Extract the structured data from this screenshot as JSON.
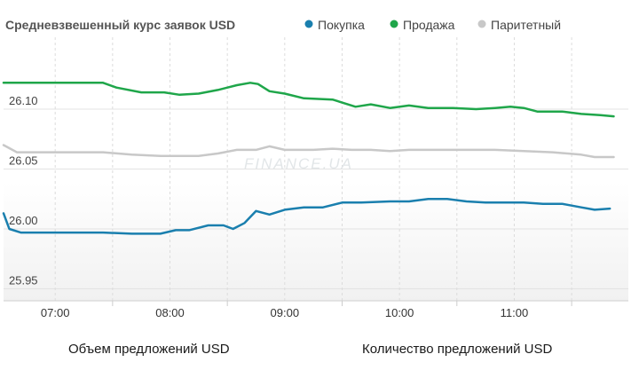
{
  "chart_data": {
    "type": "line",
    "title": "Средневзвешенный курс заявок USD",
    "watermark": "FINANCE.UA",
    "x_ticks": [
      "07:00",
      "08:00",
      "09:00",
      "10:00",
      "11:00"
    ],
    "x_range": [
      "06:33",
      "11:55"
    ],
    "y_ticks": [
      "26.10",
      "26.05",
      "26.00",
      "25.95"
    ],
    "ylim": [
      25.94,
      26.16
    ],
    "grid": true,
    "legend_position": "top",
    "series": [
      {
        "name": "Покупка",
        "color": "#1a7fae",
        "points": [
          [
            "06:33",
            26.013
          ],
          [
            "06:36",
            26.0
          ],
          [
            "06:42",
            25.997
          ],
          [
            "06:50",
            25.997
          ],
          [
            "07:05",
            25.997
          ],
          [
            "07:25",
            25.997
          ],
          [
            "07:40",
            25.996
          ],
          [
            "07:55",
            25.996
          ],
          [
            "08:03",
            25.999
          ],
          [
            "08:10",
            25.999
          ],
          [
            "08:20",
            26.003
          ],
          [
            "08:28",
            26.003
          ],
          [
            "08:33",
            26.0
          ],
          [
            "08:39",
            26.005
          ],
          [
            "08:45",
            26.015
          ],
          [
            "08:52",
            26.012
          ],
          [
            "09:00",
            26.016
          ],
          [
            "09:10",
            26.018
          ],
          [
            "09:20",
            26.018
          ],
          [
            "09:30",
            26.022
          ],
          [
            "09:40",
            26.022
          ],
          [
            "09:55",
            26.023
          ],
          [
            "10:05",
            26.023
          ],
          [
            "10:15",
            26.025
          ],
          [
            "10:25",
            26.025
          ],
          [
            "10:35",
            26.023
          ],
          [
            "10:45",
            26.022
          ],
          [
            "10:55",
            26.022
          ],
          [
            "11:05",
            26.022
          ],
          [
            "11:15",
            26.021
          ],
          [
            "11:25",
            26.021
          ],
          [
            "11:35",
            26.018
          ],
          [
            "11:42",
            26.016
          ],
          [
            "11:50",
            26.017
          ]
        ]
      },
      {
        "name": "Продажа",
        "color": "#1fa64a",
        "points": [
          [
            "06:33",
            26.122
          ],
          [
            "06:50",
            26.122
          ],
          [
            "07:10",
            26.122
          ],
          [
            "07:25",
            26.122
          ],
          [
            "07:32",
            26.118
          ],
          [
            "07:45",
            26.114
          ],
          [
            "07:57",
            26.114
          ],
          [
            "08:05",
            26.112
          ],
          [
            "08:15",
            26.113
          ],
          [
            "08:25",
            26.116
          ],
          [
            "08:35",
            26.12
          ],
          [
            "08:42",
            26.122
          ],
          [
            "08:46",
            26.121
          ],
          [
            "08:52",
            26.115
          ],
          [
            "09:00",
            26.113
          ],
          [
            "09:10",
            26.109
          ],
          [
            "09:25",
            26.108
          ],
          [
            "09:37",
            26.102
          ],
          [
            "09:45",
            26.104
          ],
          [
            "09:55",
            26.101
          ],
          [
            "10:05",
            26.103
          ],
          [
            "10:15",
            26.101
          ],
          [
            "10:28",
            26.101
          ],
          [
            "10:40",
            26.1
          ],
          [
            "10:50",
            26.101
          ],
          [
            "10:58",
            26.102
          ],
          [
            "11:05",
            26.101
          ],
          [
            "11:12",
            26.098
          ],
          [
            "11:25",
            26.098
          ],
          [
            "11:35",
            26.096
          ],
          [
            "11:45",
            26.095
          ],
          [
            "11:52",
            26.094
          ]
        ]
      },
      {
        "name": "Паритетный",
        "color": "#c8c8c8",
        "points": [
          [
            "06:33",
            26.07
          ],
          [
            "06:40",
            26.064
          ],
          [
            "06:50",
            26.064
          ],
          [
            "07:10",
            26.064
          ],
          [
            "07:25",
            26.064
          ],
          [
            "07:40",
            26.062
          ],
          [
            "07:55",
            26.061
          ],
          [
            "08:05",
            26.061
          ],
          [
            "08:15",
            26.061
          ],
          [
            "08:25",
            26.063
          ],
          [
            "08:35",
            26.066
          ],
          [
            "08:45",
            26.066
          ],
          [
            "08:52",
            26.069
          ],
          [
            "09:00",
            26.066
          ],
          [
            "09:15",
            26.066
          ],
          [
            "09:25",
            26.067
          ],
          [
            "09:35",
            26.066
          ],
          [
            "09:45",
            26.066
          ],
          [
            "09:55",
            26.065
          ],
          [
            "10:05",
            26.066
          ],
          [
            "10:20",
            26.066
          ],
          [
            "10:35",
            26.066
          ],
          [
            "10:50",
            26.066
          ],
          [
            "11:05",
            26.065
          ],
          [
            "11:20",
            26.064
          ],
          [
            "11:35",
            26.062
          ],
          [
            "11:42",
            26.06
          ],
          [
            "11:52",
            26.06
          ]
        ]
      }
    ]
  },
  "footer": {
    "left_tab": "Объем предложений USD",
    "right_tab": "Количество предложений USD"
  }
}
